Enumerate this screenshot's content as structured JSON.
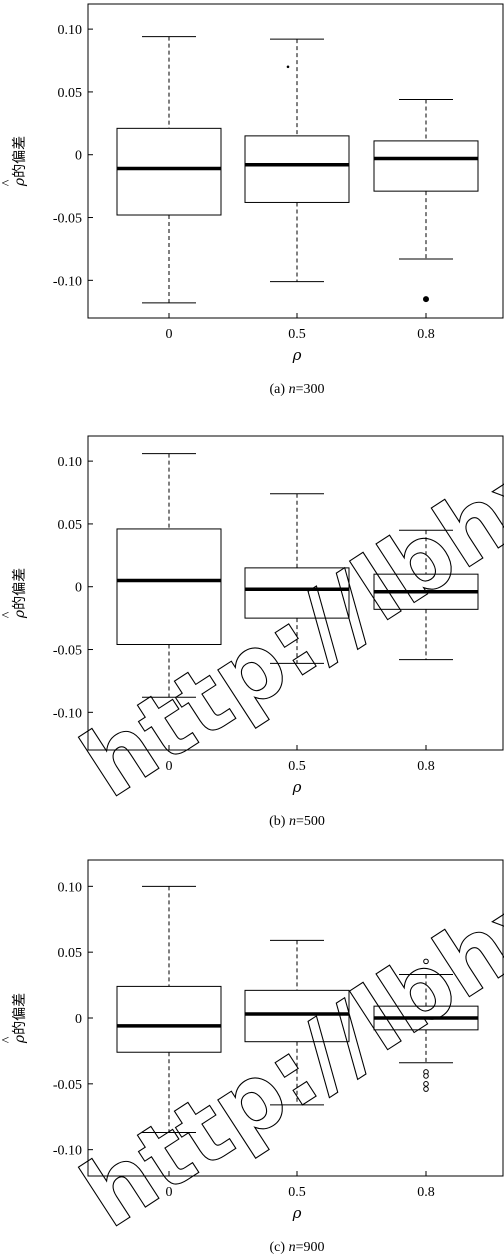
{
  "chart_data": [
    {
      "type": "box",
      "caption_prefix": "(a) ",
      "caption_var": "n",
      "caption_value": "=300",
      "ylabel_hat": "ρ",
      "ylabel_text": "的偏差",
      "xlabel": "ρ",
      "categories": [
        "0",
        "0.5",
        "0.8"
      ],
      "ylim": [
        -0.13,
        0.12
      ],
      "yticks": [
        0.1,
        0.05,
        0,
        -0.05,
        -0.1
      ],
      "ytick_labels": [
        "0.10",
        "0.05",
        "0",
        "-0.05",
        "-0.10"
      ],
      "boxes": [
        {
          "whisker_low": -0.118,
          "q1": -0.048,
          "median": -0.011,
          "q3": 0.021,
          "whisker_high": 0.094,
          "outliers": []
        },
        {
          "whisker_low": -0.101,
          "q1": -0.038,
          "median": -0.008,
          "q3": 0.015,
          "whisker_high": 0.092,
          "outliers": [
            0.07
          ]
        },
        {
          "whisker_low": -0.083,
          "q1": -0.029,
          "median": -0.003,
          "q3": 0.011,
          "whisker_high": 0.044,
          "outliers": [
            -0.115
          ]
        }
      ]
    },
    {
      "type": "box",
      "caption_prefix": "(b) ",
      "caption_var": "n",
      "caption_value": "=500",
      "ylabel_hat": "ρ",
      "ylabel_text": "的偏差",
      "xlabel": "ρ",
      "categories": [
        "0",
        "0.5",
        "0.8"
      ],
      "ylim": [
        -0.13,
        0.12
      ],
      "yticks": [
        0.1,
        0.05,
        0,
        -0.05,
        -0.1
      ],
      "ytick_labels": [
        "0.10",
        "0.05",
        "0",
        "-0.05",
        "-0.10"
      ],
      "boxes": [
        {
          "whisker_low": -0.088,
          "q1": -0.046,
          "median": 0.005,
          "q3": 0.046,
          "whisker_high": 0.106,
          "outliers": []
        },
        {
          "whisker_low": -0.061,
          "q1": -0.025,
          "median": -0.002,
          "q3": 0.015,
          "whisker_high": 0.074,
          "outliers": []
        },
        {
          "whisker_low": -0.058,
          "q1": -0.018,
          "median": -0.004,
          "q3": 0.01,
          "whisker_high": 0.045,
          "outliers": []
        }
      ]
    },
    {
      "type": "box",
      "caption_prefix": "(c) ",
      "caption_var": "n",
      "caption_value": "=900",
      "ylabel_hat": "ρ",
      "ylabel_text": "的偏差",
      "xlabel": "ρ",
      "categories": [
        "0",
        "0.5",
        "0.8"
      ],
      "ylim": [
        -0.12,
        0.12
      ],
      "yticks": [
        0.1,
        0.05,
        0,
        -0.05,
        -0.1
      ],
      "ytick_labels": [
        "0.10",
        "0.05",
        "0",
        "-0.05",
        "-0.10"
      ],
      "boxes": [
        {
          "whisker_low": -0.087,
          "q1": -0.026,
          "median": -0.006,
          "q3": 0.024,
          "whisker_high": 0.1,
          "outliers": []
        },
        {
          "whisker_low": -0.066,
          "q1": -0.018,
          "median": 0.003,
          "q3": 0.021,
          "whisker_high": 0.059,
          "outliers": []
        },
        {
          "whisker_low": -0.034,
          "q1": -0.009,
          "median": 0.0,
          "q3": 0.009,
          "whisker_high": 0.033,
          "outliers": [
            0.043,
            -0.041,
            -0.044,
            -0.05,
            -0.054
          ]
        }
      ]
    }
  ],
  "watermark": {
    "text": "http://lbhxb"
  }
}
